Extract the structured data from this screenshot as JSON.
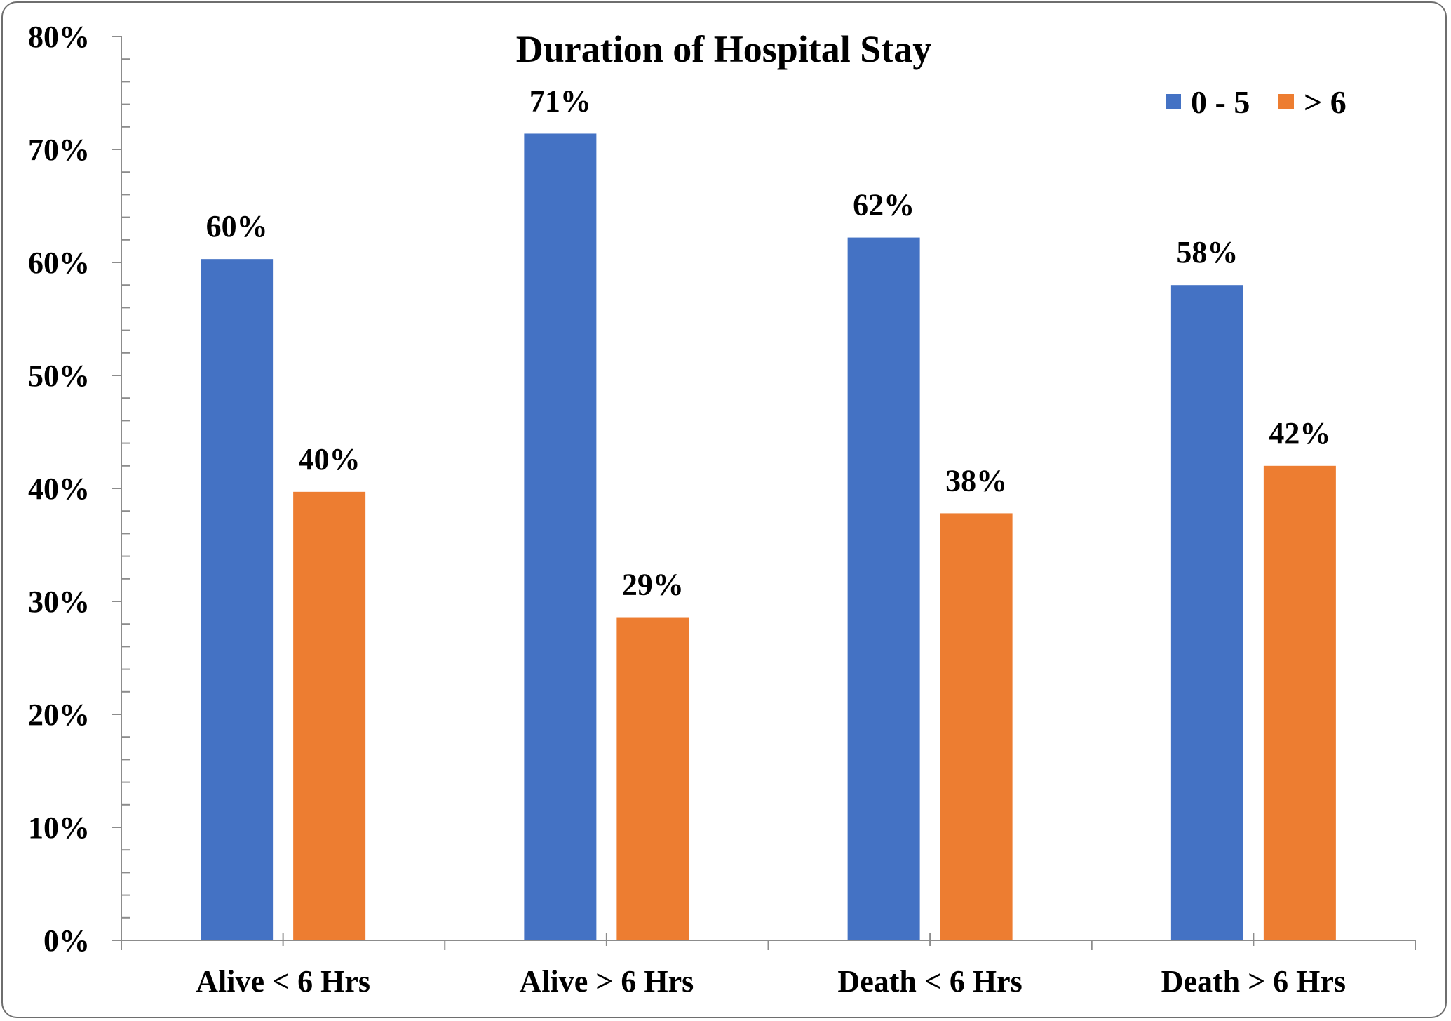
{
  "chart_data": {
    "type": "bar",
    "title": "Duration of Hospital Stay",
    "xlabel": "",
    "ylabel": "",
    "categories": [
      "Alive < 6 Hrs",
      "Alive > 6 Hrs",
      "Death < 6 Hrs",
      "Death > 6 Hrs"
    ],
    "series": [
      {
        "name": "0 - 5",
        "values": [
          60.3,
          71.4,
          62.2,
          58.0
        ],
        "labels": [
          "60%",
          "71%",
          "62%",
          "58%"
        ],
        "color": "#4472C4"
      },
      {
        "name": "> 6",
        "values": [
          39.7,
          28.6,
          37.8,
          42.0
        ],
        "labels": [
          "40%",
          "29%",
          "38%",
          "42%"
        ],
        "color": "#ED7D31"
      }
    ],
    "ylim": [
      0,
      80
    ],
    "y_ticks": [
      0,
      10,
      20,
      30,
      40,
      50,
      60,
      70,
      80
    ],
    "y_tick_labels": [
      "0%",
      "10%",
      "20%",
      "30%",
      "40%",
      "50%",
      "60%",
      "70%",
      "80%"
    ],
    "legend_position": "top-right",
    "grid": false
  }
}
